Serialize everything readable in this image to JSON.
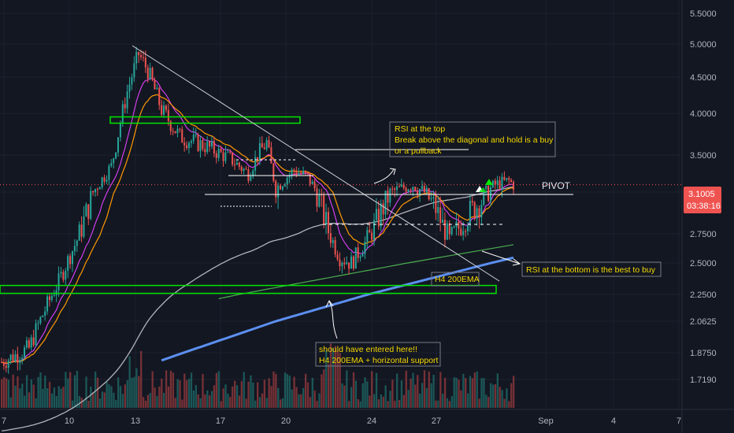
{
  "chart_data": {
    "type": "candlestick",
    "y_axis": {
      "ticks": [
        "5.5000",
        "5.0000",
        "4.5000",
        "4.0000",
        "3.5000",
        "3.0000",
        "2.7500",
        "2.5000",
        "2.2500",
        "2.0625",
        "1.8750",
        "1.7190"
      ],
      "range": [
        1.6,
        5.65
      ]
    },
    "x_axis": {
      "ticks": [
        "7",
        "10",
        "13",
        "17",
        "20",
        "24",
        "27",
        "Sep",
        "4",
        "7"
      ]
    },
    "price_label": {
      "value": "3.1005",
      "countdown": "03:38:16",
      "color": "#ef5350"
    },
    "annotations": {
      "rsi_top": [
        "RSI at the top",
        "Break above the diagonal and hold is a buy",
        "or a pullback"
      ],
      "rsi_bottom": "RSI at the bottom is the best to buy",
      "ema_label": "H4 200EMA",
      "entry": [
        "should have entered here!!",
        "H4 200EMA + horizontal support"
      ],
      "pivot": "PIVOT"
    },
    "key_levels": {
      "resistance_box": 3.92,
      "support_box": 2.29,
      "pivot": 3.1
    },
    "series": [
      {
        "color": "#e040fb"
      },
      {
        "color": "#ff9800"
      },
      {
        "color": "#b2b5be"
      },
      {
        "color": "#4caf50"
      },
      {
        "color": "#5c8ff0"
      }
    ],
    "colors": {
      "up": "#26a69a",
      "down": "#ef5350",
      "background": "#131722",
      "annotation": "#f5d800"
    }
  }
}
